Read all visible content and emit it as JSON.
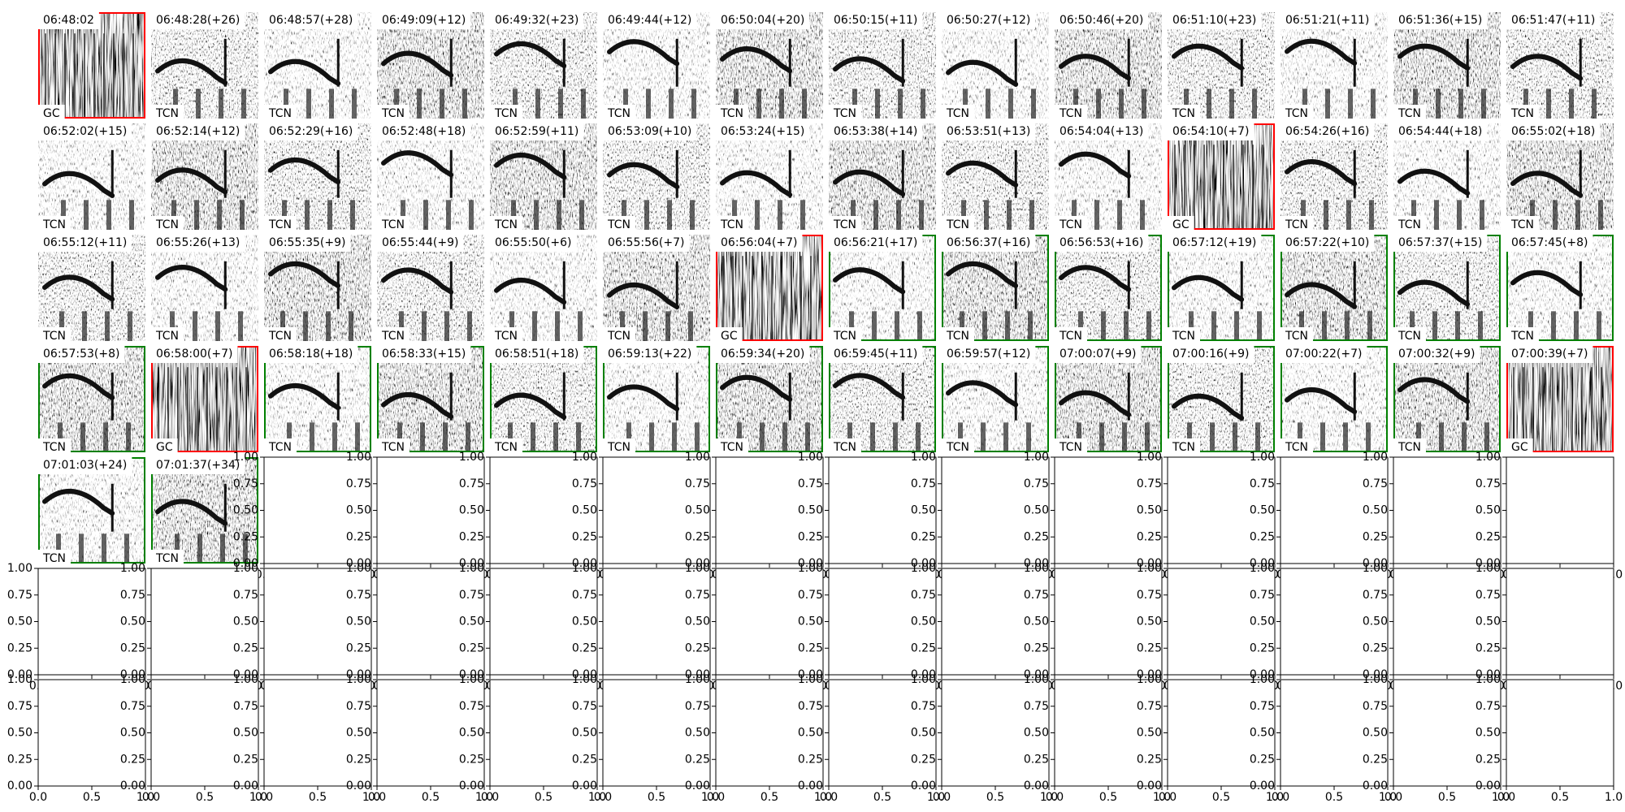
{
  "panels": [
    {
      "title": "06:48:02",
      "label": "GC",
      "color": "#ff0000"
    },
    {
      "title": "06:48:28(+26)",
      "label": "TCN"
    },
    {
      "title": "06:48:57(+28)",
      "label": "TCN"
    },
    {
      "title": "06:49:09(+12)",
      "label": "TCN"
    },
    {
      "title": "06:49:32(+23)",
      "label": "TCN"
    },
    {
      "title": "06:49:44(+12)",
      "label": "TCN"
    },
    {
      "title": "06:50:04(+20)",
      "label": "TCN"
    },
    {
      "title": "06:50:15(+11)",
      "label": "TCN"
    },
    {
      "title": "06:50:27(+12)",
      "label": "TCN"
    },
    {
      "title": "06:50:46(+20)",
      "label": "TCN"
    },
    {
      "title": "06:51:10(+23)",
      "label": "TCN"
    },
    {
      "title": "06:51:21(+11)",
      "label": "TCN"
    },
    {
      "title": "06:51:36(+15)",
      "label": "TCN"
    },
    {
      "title": "06:51:47(+11)",
      "label": "TCN"
    },
    {
      "title": "06:52:02(+15)",
      "label": "TCN"
    },
    {
      "title": "06:52:14(+12)",
      "label": "TCN"
    },
    {
      "title": "06:52:29(+16)",
      "label": "TCN"
    },
    {
      "title": "06:52:48(+18)",
      "label": "TCN"
    },
    {
      "title": "06:52:59(+11)",
      "label": "TCN"
    },
    {
      "title": "06:53:09(+10)",
      "label": "TCN"
    },
    {
      "title": "06:53:24(+15)",
      "label": "TCN"
    },
    {
      "title": "06:53:38(+14)",
      "label": "TCN"
    },
    {
      "title": "06:53:51(+13)",
      "label": "TCN"
    },
    {
      "title": "06:54:04(+13)",
      "label": "TCN"
    },
    {
      "title": "06:54:10(+7)",
      "label": "GC",
      "color": "#ff0000"
    },
    {
      "title": "06:54:26(+16)",
      "label": "TCN"
    },
    {
      "title": "06:54:44(+18)",
      "label": "TCN"
    },
    {
      "title": "06:55:02(+18)",
      "label": "TCN"
    },
    {
      "title": "06:55:12(+11)",
      "label": "TCN"
    },
    {
      "title": "06:55:26(+13)",
      "label": "TCN"
    },
    {
      "title": "06:55:35(+9)",
      "label": "TCN"
    },
    {
      "title": "06:55:44(+9)",
      "label": "TCN"
    },
    {
      "title": "06:55:50(+6)",
      "label": "TCN"
    },
    {
      "title": "06:55:56(+7)",
      "label": "TCN"
    },
    {
      "title": "06:56:04(+7)",
      "label": "GC",
      "color": "#ff0000"
    },
    {
      "title": "06:56:21(+17)",
      "label": "TCN",
      "color": "#008000"
    },
    {
      "title": "06:56:37(+16)",
      "label": "TCN",
      "color": "#008000"
    },
    {
      "title": "06:56:53(+16)",
      "label": "TCN",
      "color": "#008000"
    },
    {
      "title": "06:57:12(+19)",
      "label": "TCN",
      "color": "#008000"
    },
    {
      "title": "06:57:22(+10)",
      "label": "TCN",
      "color": "#008000"
    },
    {
      "title": "06:57:37(+15)",
      "label": "TCN",
      "color": "#008000"
    },
    {
      "title": "06:57:45(+8)",
      "label": "TCN",
      "color": "#008000"
    },
    {
      "title": "06:57:53(+8)",
      "label": "TCN",
      "color": "#008000"
    },
    {
      "title": "06:58:00(+7)",
      "label": "GC",
      "color": "#ff0000"
    },
    {
      "title": "06:58:18(+18)",
      "label": "TCN",
      "color": "#008000"
    },
    {
      "title": "06:58:33(+15)",
      "label": "TCN",
      "color": "#008000"
    },
    {
      "title": "06:58:51(+18)",
      "label": "TCN",
      "color": "#008000"
    },
    {
      "title": "06:59:13(+22)",
      "label": "TCN",
      "color": "#008000"
    },
    {
      "title": "06:59:34(+20)",
      "label": "TCN",
      "color": "#008000"
    },
    {
      "title": "06:59:45(+11)",
      "label": "TCN",
      "color": "#008000"
    },
    {
      "title": "06:59:57(+12)",
      "label": "TCN",
      "color": "#008000"
    },
    {
      "title": "07:00:07(+9)",
      "label": "TCN",
      "color": "#008000"
    },
    {
      "title": "07:00:16(+9)",
      "label": "TCN",
      "color": "#008000"
    },
    {
      "title": "07:00:22(+7)",
      "label": "TCN",
      "color": "#008000"
    },
    {
      "title": "07:00:32(+9)",
      "label": "TCN",
      "color": "#008000"
    },
    {
      "title": "07:00:39(+7)",
      "label": "GC",
      "color": "#ff0000"
    },
    {
      "title": "07:01:03(+24)",
      "label": "TCN",
      "color": "#008000"
    },
    {
      "title": "07:01:37(+34)",
      "label": "TCN",
      "color": "#008000"
    }
  ],
  "empty_axes": {
    "xlim": [
      0,
      1
    ],
    "ylim": [
      0,
      1
    ],
    "xticks": [
      {
        "value": 0,
        "label": "0.0"
      },
      {
        "value": 0.5,
        "label": "0.5"
      },
      {
        "value": 1,
        "label": "1.0"
      }
    ],
    "yticks": [
      {
        "value": 0,
        "label": "0.00"
      },
      {
        "value": 0.25,
        "label": "0.25"
      },
      {
        "value": 0.5,
        "label": "0.50"
      },
      {
        "value": 0.75,
        "label": "0.75"
      },
      {
        "value": 1,
        "label": "1.00"
      }
    ]
  }
}
